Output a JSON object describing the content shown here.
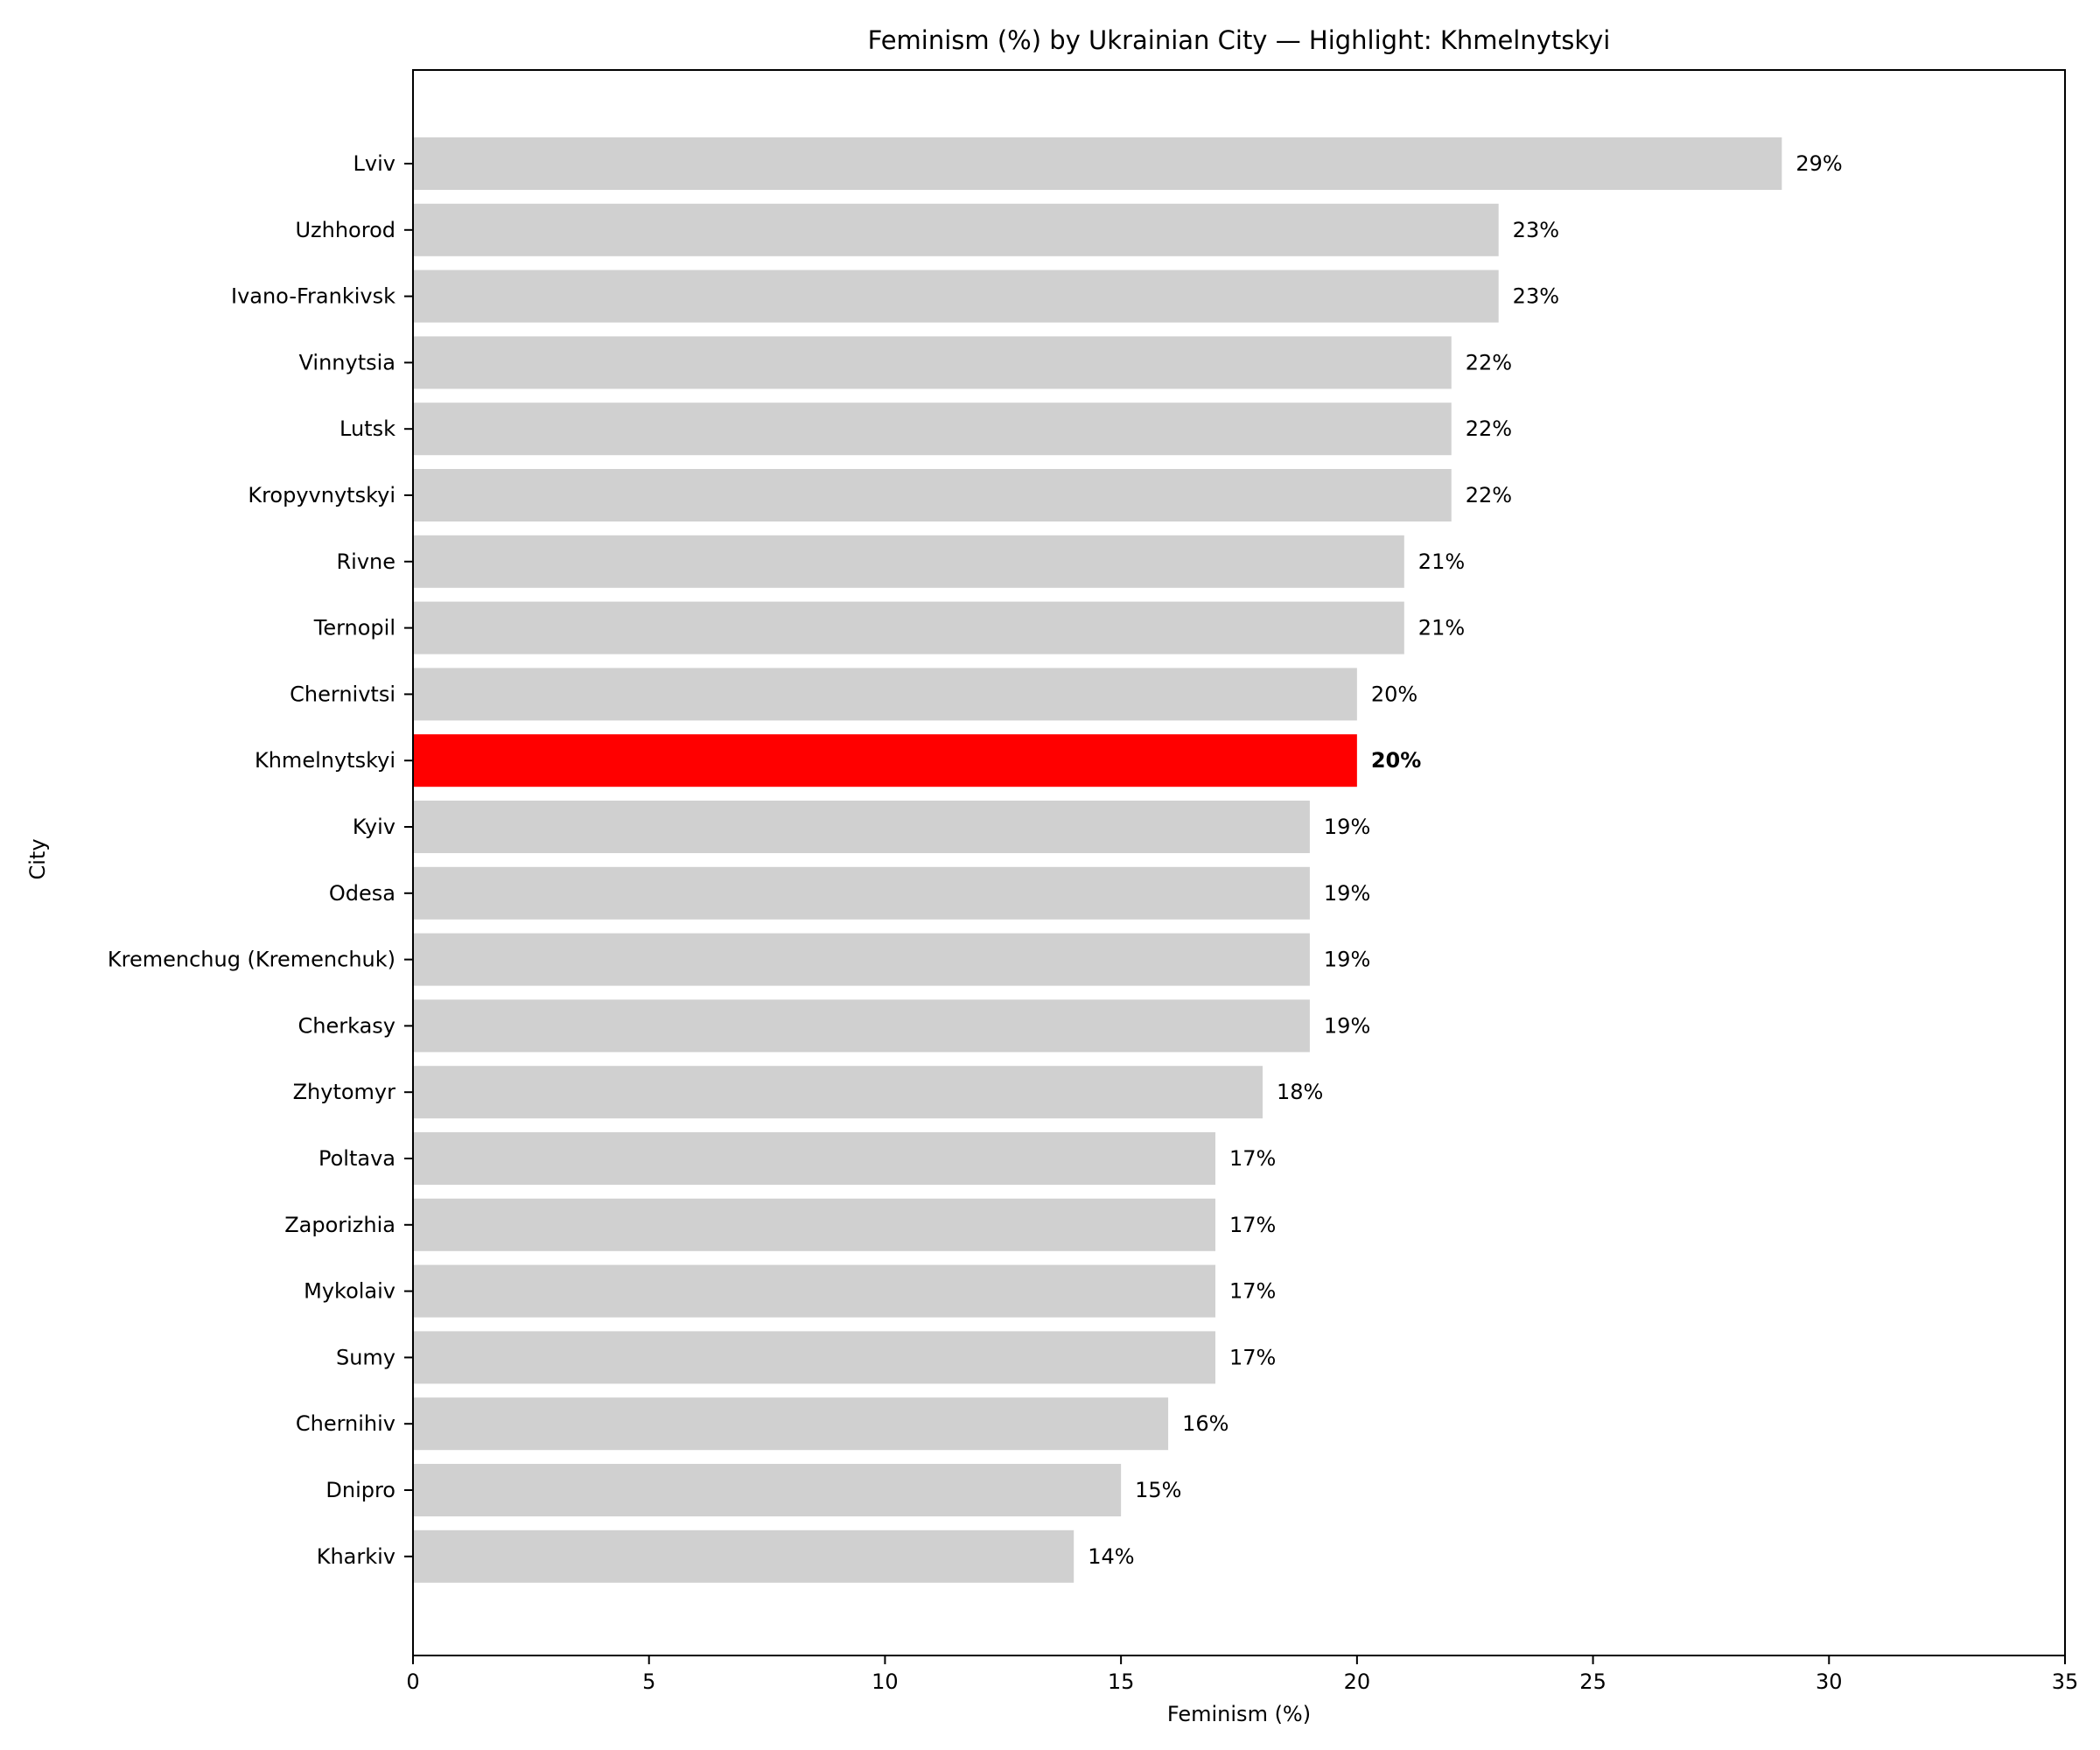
{
  "chart_data": {
    "type": "bar",
    "orientation": "horizontal",
    "title": "Feminism (%) by Ukrainian City — Highlight: Khmelnytskyi",
    "xlabel": "Feminism (%)",
    "ylabel": "City",
    "xlim": [
      0,
      35
    ],
    "xticks": [
      0,
      5,
      10,
      15,
      20,
      25,
      30,
      35
    ],
    "grid": false,
    "highlight": "Khmelnytskyi",
    "colors": {
      "default": "#d0d0d0",
      "highlight": "#ff0000"
    },
    "value_suffix": "%",
    "categories": [
      "Lviv",
      "Uzhhorod",
      "Ivano-Frankivsk",
      "Vinnytsia",
      "Lutsk",
      "Kropyvnytskyi",
      "Rivne",
      "Ternopil",
      "Chernivtsi",
      "Khmelnytskyi",
      "Kyiv",
      "Odesa",
      "Kremenchug (Kremenchuk)",
      "Cherkasy",
      "Zhytomyr",
      "Poltava",
      "Zaporizhia",
      "Mykolaiv",
      "Sumy",
      "Chernihiv",
      "Dnipro",
      "Kharkiv"
    ],
    "values": [
      29,
      23,
      23,
      22,
      22,
      22,
      21,
      21,
      20,
      20,
      19,
      19,
      19,
      19,
      18,
      17,
      17,
      17,
      17,
      16,
      15,
      14
    ]
  }
}
